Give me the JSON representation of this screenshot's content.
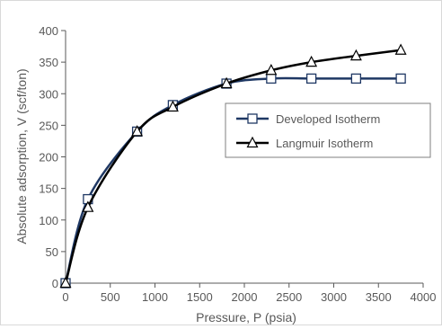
{
  "chart_data": {
    "type": "line",
    "title": "",
    "xlabel": "Pressure, P (psia)",
    "ylabel": "Absolute adsorption, V (scf/ton)",
    "xlim": [
      0,
      4000
    ],
    "ylim": [
      0,
      400
    ],
    "xticks": [
      0,
      500,
      1000,
      1500,
      2000,
      2500,
      3000,
      3500,
      4000
    ],
    "yticks": [
      0,
      50,
      100,
      150,
      200,
      250,
      300,
      350,
      400
    ],
    "grid": false,
    "legend_position": "right",
    "series": [
      {
        "name": "Developed Isotherm",
        "color": "#1f3864",
        "marker": "square",
        "x": [
          0,
          250,
          800,
          1200,
          1800,
          2300,
          2750,
          3250,
          3750
        ],
        "y": [
          0,
          133,
          240,
          282,
          316,
          324,
          324,
          324,
          324
        ]
      },
      {
        "name": "Langmuir Isotherm",
        "color": "#000000",
        "marker": "triangle",
        "x": [
          0,
          250,
          800,
          1200,
          1800,
          2300,
          2750,
          3250,
          3750
        ],
        "y": [
          0,
          120,
          240,
          279,
          316,
          337,
          350,
          360,
          369
        ]
      }
    ]
  }
}
